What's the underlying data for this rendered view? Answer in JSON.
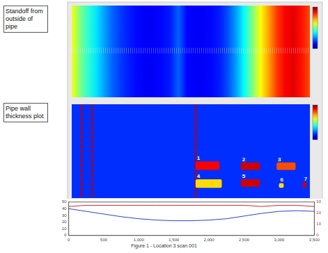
{
  "labels": {
    "standoff": "Standoff from outside of pipe",
    "thickness": "Pipe wall thickness plot"
  },
  "caption": "Figure 1 - Location 3 scan 001",
  "standoff_map": {
    "type": "heatmap",
    "color_range": [
      0,
      1
    ],
    "columns": [
      0.62,
      0.5,
      0.42,
      0.35,
      0.28,
      0.22,
      0.18,
      0.15,
      0.13,
      0.12,
      0.12,
      0.13,
      0.15,
      0.22,
      0.13,
      0.12,
      0.12,
      0.13,
      0.15,
      0.2,
      0.28,
      0.38,
      0.5,
      0.62,
      0.72,
      0.82,
      0.88,
      0.9,
      0.86,
      0.8
    ]
  },
  "thickness_map": {
    "type": "heatmap",
    "color_range": [
      0,
      1
    ],
    "background": 0.17,
    "indications": [
      {
        "x": 0.04,
        "value": 0.95
      },
      {
        "x": 0.085,
        "value": 0.95
      },
      {
        "x": 0.52,
        "value": 0.95
      }
    ],
    "defects": [
      {
        "label": "1",
        "x": [
          0.52,
          0.62
        ],
        "y": [
          0.61,
          0.7
        ],
        "value": 0.88
      },
      {
        "label": "2",
        "x": [
          0.71,
          0.79
        ],
        "y": [
          0.62,
          0.7
        ],
        "value": 0.92
      },
      {
        "label": "3",
        "x": [
          0.86,
          0.94
        ],
        "y": [
          0.62,
          0.7
        ],
        "value": 0.8
      },
      {
        "label": "4",
        "x": [
          0.52,
          0.63
        ],
        "y": [
          0.8,
          0.89
        ],
        "value": 0.66
      },
      {
        "label": "5",
        "x": [
          0.71,
          0.79
        ],
        "y": [
          0.8,
          0.88
        ],
        "value": 0.92
      },
      {
        "label": "6",
        "x": [
          0.87,
          0.89
        ],
        "y": [
          0.84,
          0.89
        ],
        "value": 0.66
      },
      {
        "label": "7",
        "x": [
          0.97,
          0.985
        ],
        "y": [
          0.83,
          0.89
        ],
        "value": 0.92
      }
    ]
  },
  "chart_data": {
    "type": "line",
    "x": [
      0,
      250,
      500,
      750,
      1000,
      1250,
      1500,
      1750,
      2000,
      2250,
      2500,
      2750,
      3000,
      3250,
      3500
    ],
    "series": [
      {
        "color": "#2a3fd6",
        "values": [
          40,
          36,
          32,
          28,
          25,
          23,
          22,
          22,
          23,
          25,
          29,
          33,
          36,
          37,
          36
        ]
      },
      {
        "color": "#d62a2a",
        "axis": "y2",
        "values": [
          26,
          27,
          27,
          27,
          27,
          27,
          27,
          27,
          27,
          27,
          27,
          26,
          27,
          27,
          26
        ]
      }
    ],
    "xlim": [
      0,
      3500
    ],
    "xticks": [
      0,
      500,
      1000,
      1500,
      2000,
      2500,
      3000,
      3500
    ],
    "ylim": [
      0,
      50
    ],
    "yticks": [
      0,
      10,
      20,
      30,
      40,
      50
    ],
    "y2lim": [
      0,
      30
    ],
    "y2ticks": [
      0,
      10,
      20,
      30
    ],
    "grid": false
  }
}
